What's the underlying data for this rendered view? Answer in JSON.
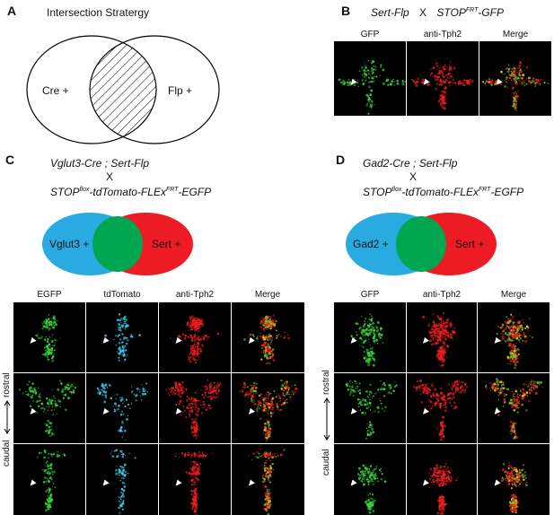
{
  "panelA": {
    "label": "A",
    "title": "Intersection Stratergy",
    "left_set": "Cre +",
    "right_set": "Flp +"
  },
  "panelB": {
    "label": "B",
    "cross_left": "Sert-Flp",
    "cross_x": "X",
    "cross_right_main": "STOP",
    "cross_right_sup": "FRT",
    "cross_right_tail": "-GFP",
    "headers": [
      "GFP",
      "anti-Tph2",
      "Merge"
    ]
  },
  "panelC": {
    "label": "C",
    "line1": "Vglut3-Cre ; Sert-Flp",
    "x": "X",
    "line2_main": "STOP",
    "line2_sup1": "flox",
    "line2_mid": "-tdTomato-FLEx",
    "line2_sup2": "FRT",
    "line2_tail": "-EGFP",
    "left_set": "Vglut3 +",
    "right_set": "Sert +",
    "headers": [
      "EGFP",
      "tdTomato",
      "anti-Tph2",
      "Merge"
    ],
    "axis_top": "rostral",
    "axis_bottom": "caudal"
  },
  "panelD": {
    "label": "D",
    "line1": "Gad2-Cre ; Sert-Flp",
    "x": "X",
    "line2_main": "STOP",
    "line2_sup1": "flox",
    "line2_mid": "-tdTomato-FLEx",
    "line2_sup2": "FRT",
    "line2_tail": "-EGFP",
    "left_set": "Gad2 +",
    "right_set": "Sert +",
    "headers": [
      "GFP",
      "anti-Tph2",
      "Merge"
    ],
    "axis_top": "rostral",
    "axis_bottom": "caudal"
  },
  "colors": {
    "venn_blue": "#29abe2",
    "venn_red": "#ed1c24",
    "venn_green": "#00a650",
    "gfp": "#39d33a",
    "tdtomato": "#3fc8e6",
    "tph2": "#e81e1e",
    "merge": "#e8c21e"
  }
}
